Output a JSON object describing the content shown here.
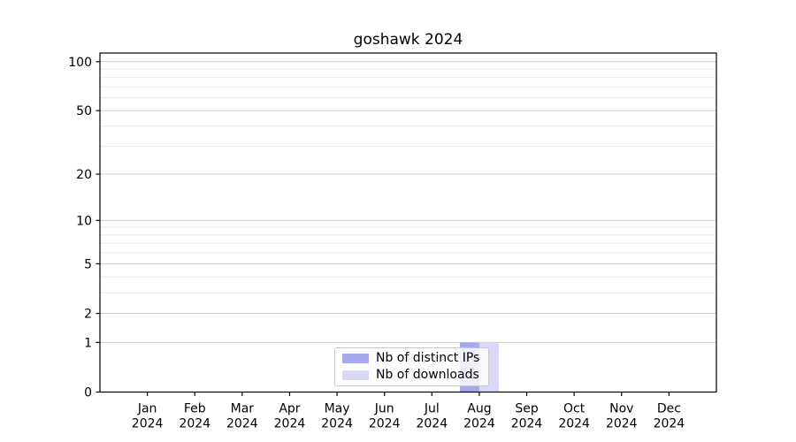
{
  "chart_data": {
    "type": "bar",
    "title": "goshawk 2024",
    "categories": [
      "Jan 2024",
      "Feb 2024",
      "Mar 2024",
      "Apr 2024",
      "May 2024",
      "Jun 2024",
      "Jul 2024",
      "Aug 2024",
      "Sep 2024",
      "Oct 2024",
      "Nov 2024",
      "Dec 2024"
    ],
    "series": [
      {
        "name": "Nb of distinct IPs",
        "color": "#a8a8ee",
        "values": [
          0,
          0,
          0,
          0,
          0,
          0,
          0,
          1,
          0,
          0,
          0,
          0
        ]
      },
      {
        "name": "Nb of downloads",
        "color": "#d9d9f7",
        "values": [
          0,
          0,
          0,
          0,
          0,
          0,
          0,
          1,
          0,
          0,
          0,
          0
        ]
      }
    ],
    "y_scale": "log1p",
    "ylim": [
      0,
      113
    ],
    "y_major_ticks": [
      0,
      1,
      2,
      5,
      10,
      20,
      50,
      100
    ],
    "y_tick_labels": [
      "0",
      "1",
      "2",
      "5",
      "10",
      "20",
      "50",
      "100"
    ],
    "y_minor_ticks": [
      3,
      4,
      6,
      7,
      8,
      9,
      30,
      40,
      60,
      70,
      80,
      90
    ],
    "grid": "horizontal",
    "legend_position": "lower center inside",
    "colors": {
      "major_grid": "#cccccc",
      "minor_grid": "#ebebeb",
      "axis": "#000000",
      "text": "#000000",
      "legend_border": "#c9c9c9",
      "legend_bg": "rgba(255,255,255,0.8)"
    }
  }
}
